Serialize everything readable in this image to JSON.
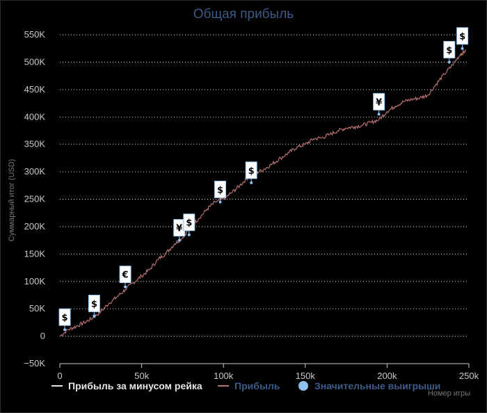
{
  "chart_data": {
    "type": "line",
    "title": "Общая прибыль",
    "xlabel": "Номер игры",
    "ylabel": "Суммарный итог (USD)",
    "xlim": [
      0,
      250000
    ],
    "ylim": [
      -50000,
      550000
    ],
    "x_ticks": [
      0,
      50000,
      100000,
      150000,
      200000,
      250000
    ],
    "x_tick_labels": [
      "0",
      "50k",
      "100k",
      "150k",
      "200k",
      "250k"
    ],
    "y_ticks": [
      -50000,
      0,
      50000,
      100000,
      150000,
      200000,
      250000,
      300000,
      350000,
      400000,
      450000,
      500000,
      550000
    ],
    "y_tick_labels": [
      "−50K",
      "0",
      "50K",
      "100K",
      "150K",
      "200K",
      "250K",
      "300K",
      "350K",
      "400K",
      "450K",
      "500K",
      "550K"
    ],
    "grid": "horizontal dotted",
    "legend_position": "bottom",
    "legend": [
      {
        "label": "Прибыль за минусом рейка",
        "color": "#e6e6e6",
        "marker": "line"
      },
      {
        "label": "Прибыль",
        "color": "#b97070",
        "marker": "line"
      },
      {
        "label": "Значительные выигрыши",
        "color": "#8fc1f0",
        "marker": "circle"
      }
    ],
    "series": [
      {
        "name": "Прибыль",
        "color": "#b97070",
        "x": [
          0,
          5000,
          10000,
          15000,
          20000,
          25000,
          30000,
          35000,
          40000,
          45000,
          50000,
          55000,
          60000,
          65000,
          70000,
          75000,
          80000,
          85000,
          90000,
          95000,
          100000,
          105000,
          110000,
          115000,
          120000,
          125000,
          130000,
          135000,
          140000,
          145000,
          150000,
          155000,
          160000,
          165000,
          170000,
          175000,
          180000,
          185000,
          190000,
          195000,
          200000,
          205000,
          210000,
          215000,
          220000,
          225000,
          230000,
          235000,
          240000,
          245000,
          248000
        ],
        "values": [
          0,
          12000,
          18000,
          25000,
          33000,
          45000,
          60000,
          72000,
          85000,
          98000,
          110000,
          122000,
          140000,
          152000,
          168000,
          180000,
          200000,
          215000,
          232000,
          245000,
          250000,
          262000,
          275000,
          290000,
          298000,
          305000,
          315000,
          325000,
          335000,
          345000,
          350000,
          360000,
          362000,
          368000,
          375000,
          380000,
          382000,
          385000,
          390000,
          395000,
          410000,
          420000,
          428000,
          432000,
          435000,
          440000,
          460000,
          478000,
          495000,
          515000,
          520000
        ]
      }
    ],
    "significant_wins": [
      {
        "x": 3000,
        "y": 12000,
        "currency": "$"
      },
      {
        "x": 21000,
        "y": 37000,
        "currency": "$"
      },
      {
        "x": 40000,
        "y": 90000,
        "currency": "€"
      },
      {
        "x": 73000,
        "y": 175000,
        "currency": "¥"
      },
      {
        "x": 79000,
        "y": 185000,
        "currency": "$"
      },
      {
        "x": 98000,
        "y": 245000,
        "currency": "$"
      },
      {
        "x": 117000,
        "y": 280000,
        "currency": "$"
      },
      {
        "x": 195000,
        "y": 405000,
        "currency": "¥"
      },
      {
        "x": 238000,
        "y": 500000,
        "currency": "$"
      },
      {
        "x": 246000,
        "y": 525000,
        "currency": "$"
      }
    ]
  }
}
